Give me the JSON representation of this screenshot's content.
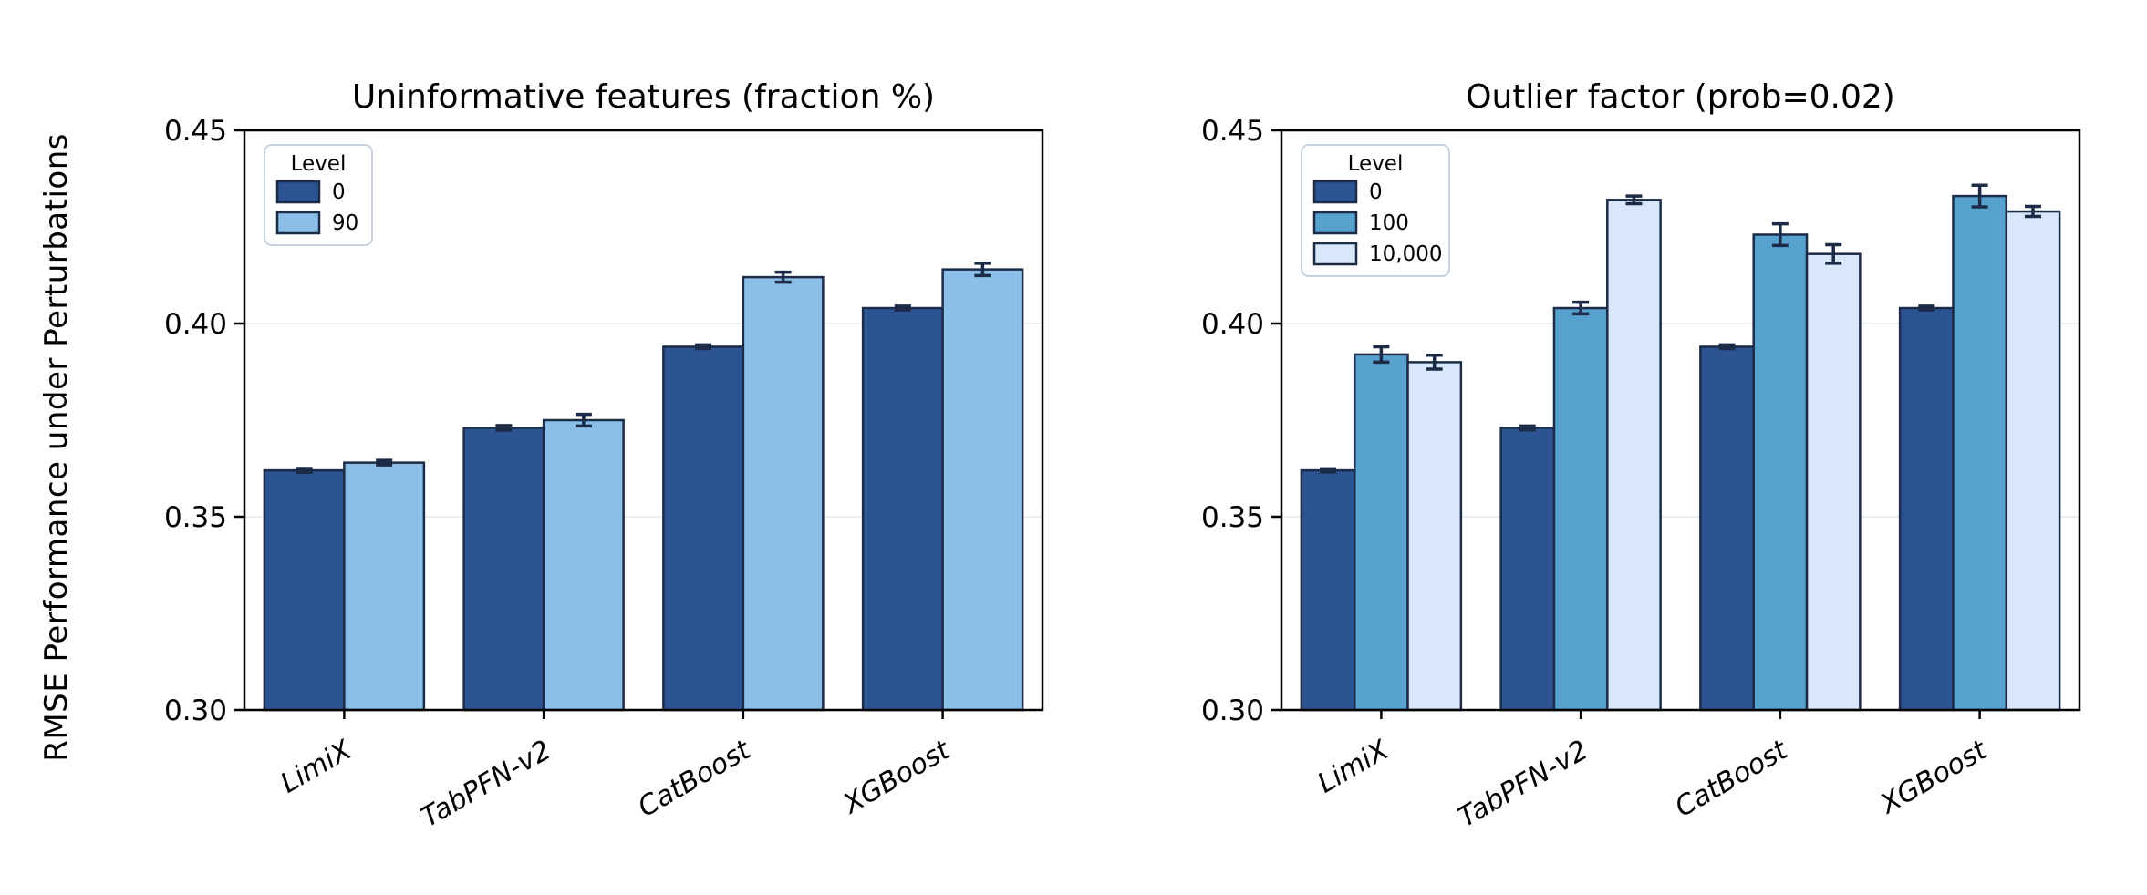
{
  "figure": {
    "ylabel": "RMSE Performance under Perturbations",
    "background": "#ffffff"
  },
  "style": {
    "edge_color": "#1c2b47",
    "grid_color": "#e9edf4",
    "axis_color": "#000000",
    "legend_border": "#c7d0dd",
    "legend_fill": "#ffffff"
  },
  "chart_data": [
    {
      "type": "bar",
      "title": "Uninformative features (fraction %)",
      "xlabel": "",
      "ylabel": "",
      "categories": [
        "LimiX",
        "TabPFN-v2",
        "CatBoost",
        "XGBoost"
      ],
      "ylim": [
        0.3,
        0.45
      ],
      "yticks": [
        0.3,
        0.35,
        0.4,
        0.45
      ],
      "ytick_labels": [
        "0.30",
        "0.35",
        "0.40",
        "0.45"
      ],
      "grid": "horizontal",
      "legend_title": "Level",
      "legend_position": "upper-left",
      "series": [
        {
          "name": "0",
          "color": "#2d5492",
          "values": [
            0.362,
            0.373,
            0.394,
            0.404
          ],
          "errors": [
            0.0005,
            0.0006,
            0.0005,
            0.0005
          ]
        },
        {
          "name": "90",
          "color": "#8bbfe7",
          "values": [
            0.364,
            0.375,
            0.412,
            0.414
          ],
          "errors": [
            0.0006,
            0.0015,
            0.0013,
            0.0016
          ]
        }
      ]
    },
    {
      "type": "bar",
      "title": "Outlier factor (prob=0.02)",
      "xlabel": "",
      "ylabel": "",
      "categories": [
        "LimiX",
        "TabPFN-v2",
        "CatBoost",
        "XGBoost"
      ],
      "ylim": [
        0.3,
        0.45
      ],
      "yticks": [
        0.3,
        0.35,
        0.4,
        0.45
      ],
      "ytick_labels": [
        "0.30",
        "0.35",
        "0.40",
        "0.45"
      ],
      "grid": "horizontal",
      "legend_title": "Level",
      "legend_position": "upper-left",
      "series": [
        {
          "name": "0",
          "color": "#2d5492",
          "values": [
            0.362,
            0.373,
            0.394,
            0.404
          ],
          "errors": [
            0.0004,
            0.0005,
            0.0005,
            0.0005
          ]
        },
        {
          "name": "100",
          "color": "#57a1cf",
          "values": [
            0.392,
            0.404,
            0.423,
            0.433
          ],
          "errors": [
            0.002,
            0.0015,
            0.0028,
            0.0028
          ]
        },
        {
          "name": "10,000",
          "color": "#d8e7fa",
          "values": [
            0.39,
            0.432,
            0.418,
            0.429
          ],
          "errors": [
            0.0018,
            0.001,
            0.0024,
            0.0013
          ]
        }
      ]
    }
  ]
}
